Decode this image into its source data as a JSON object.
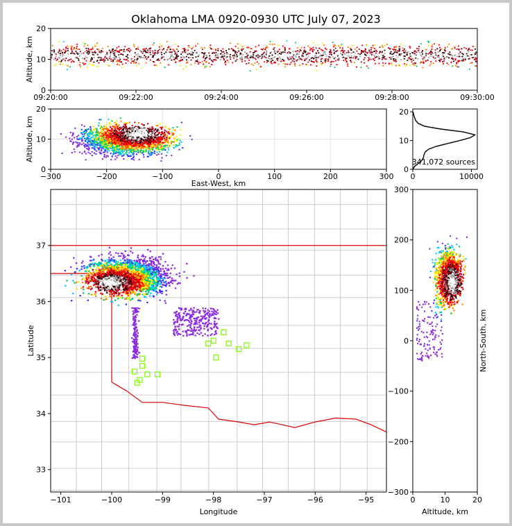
{
  "title": "Oklahoma LMA 0920-0930 UTC July 07, 2023",
  "chart_data": [
    {
      "id": "time-height",
      "type": "heatmap",
      "xlabel": "",
      "ylabel": "Altitude, km",
      "x_ticks": [
        "09:20:00",
        "09:22:00",
        "09:24:00",
        "09:26:00",
        "09:28:00",
        "09:30:00"
      ],
      "y_ticks": [
        0,
        10,
        20
      ],
      "ylim": [
        0,
        20
      ],
      "core_altitude_km": 11.5
    },
    {
      "id": "east-west-height",
      "type": "heatmap",
      "xlabel": "East-West, km",
      "ylabel": "Altitude, km",
      "x_ticks": [
        -300,
        -200,
        -100,
        0,
        100,
        200,
        300
      ],
      "y_ticks": [
        0,
        10,
        20
      ],
      "xlim": [
        -300,
        300
      ],
      "ylim": [
        0,
        20
      ],
      "grid": true,
      "core": {
        "x": -145,
        "z": 12
      }
    },
    {
      "id": "height-histogram",
      "type": "line",
      "xlabel": "",
      "ylabel": "",
      "x_ticks": [
        0,
        10000
      ],
      "y_ticks": [
        0,
        10,
        20
      ],
      "xlim": [
        0,
        11000
      ],
      "ylim": [
        0,
        21
      ],
      "annotation": "341,072 sources",
      "series": [
        {
          "altitude": [
            0,
            1,
            2,
            3,
            4,
            5,
            6,
            7,
            8,
            9,
            10,
            11,
            12,
            13,
            14,
            15,
            16,
            17,
            18,
            19,
            20
          ],
          "count": [
            0,
            300,
            900,
            1500,
            1800,
            1900,
            2100,
            2700,
            4000,
            6000,
            8000,
            9800,
            10600,
            8600,
            4800,
            2000,
            900,
            500,
            300,
            150,
            50
          ]
        }
      ]
    },
    {
      "id": "plan-view",
      "type": "heatmap",
      "xlabel": "Longitude",
      "ylabel": "Latitude",
      "x_ticks": [
        -101,
        -100,
        -99,
        -98,
        -97,
        -96,
        -95
      ],
      "y_ticks": [
        33,
        34,
        35,
        36,
        37
      ],
      "xlim": [
        -101.2,
        -94.6
      ],
      "ylim": [
        32.6,
        38.0
      ],
      "core": {
        "lon": -100.0,
        "lat": 36.35
      },
      "stations": [
        [
          -98.1,
          35.25
        ],
        [
          -97.8,
          35.45
        ],
        [
          -97.95,
          35.0
        ],
        [
          -97.7,
          35.25
        ],
        [
          -97.5,
          35.15
        ],
        [
          -97.35,
          35.22
        ],
        [
          -98.0,
          35.3
        ],
        [
          -99.55,
          34.75
        ],
        [
          -99.4,
          34.85
        ],
        [
          -99.3,
          34.7
        ],
        [
          -99.45,
          34.6
        ],
        [
          -99.5,
          34.55
        ],
        [
          -99.1,
          34.7
        ],
        [
          -99.4,
          34.98
        ]
      ]
    },
    {
      "id": "north-south-height",
      "type": "heatmap",
      "xlabel": "Altitude, km",
      "ylabel": "North-South, km",
      "x_ticks": [
        0,
        10,
        20
      ],
      "y_ticks": [
        -300,
        -200,
        -100,
        0,
        100,
        200,
        300
      ],
      "xlim": [
        0,
        20
      ],
      "ylim": [
        -300,
        300
      ],
      "core": {
        "z": 12,
        "y": 118
      }
    }
  ]
}
